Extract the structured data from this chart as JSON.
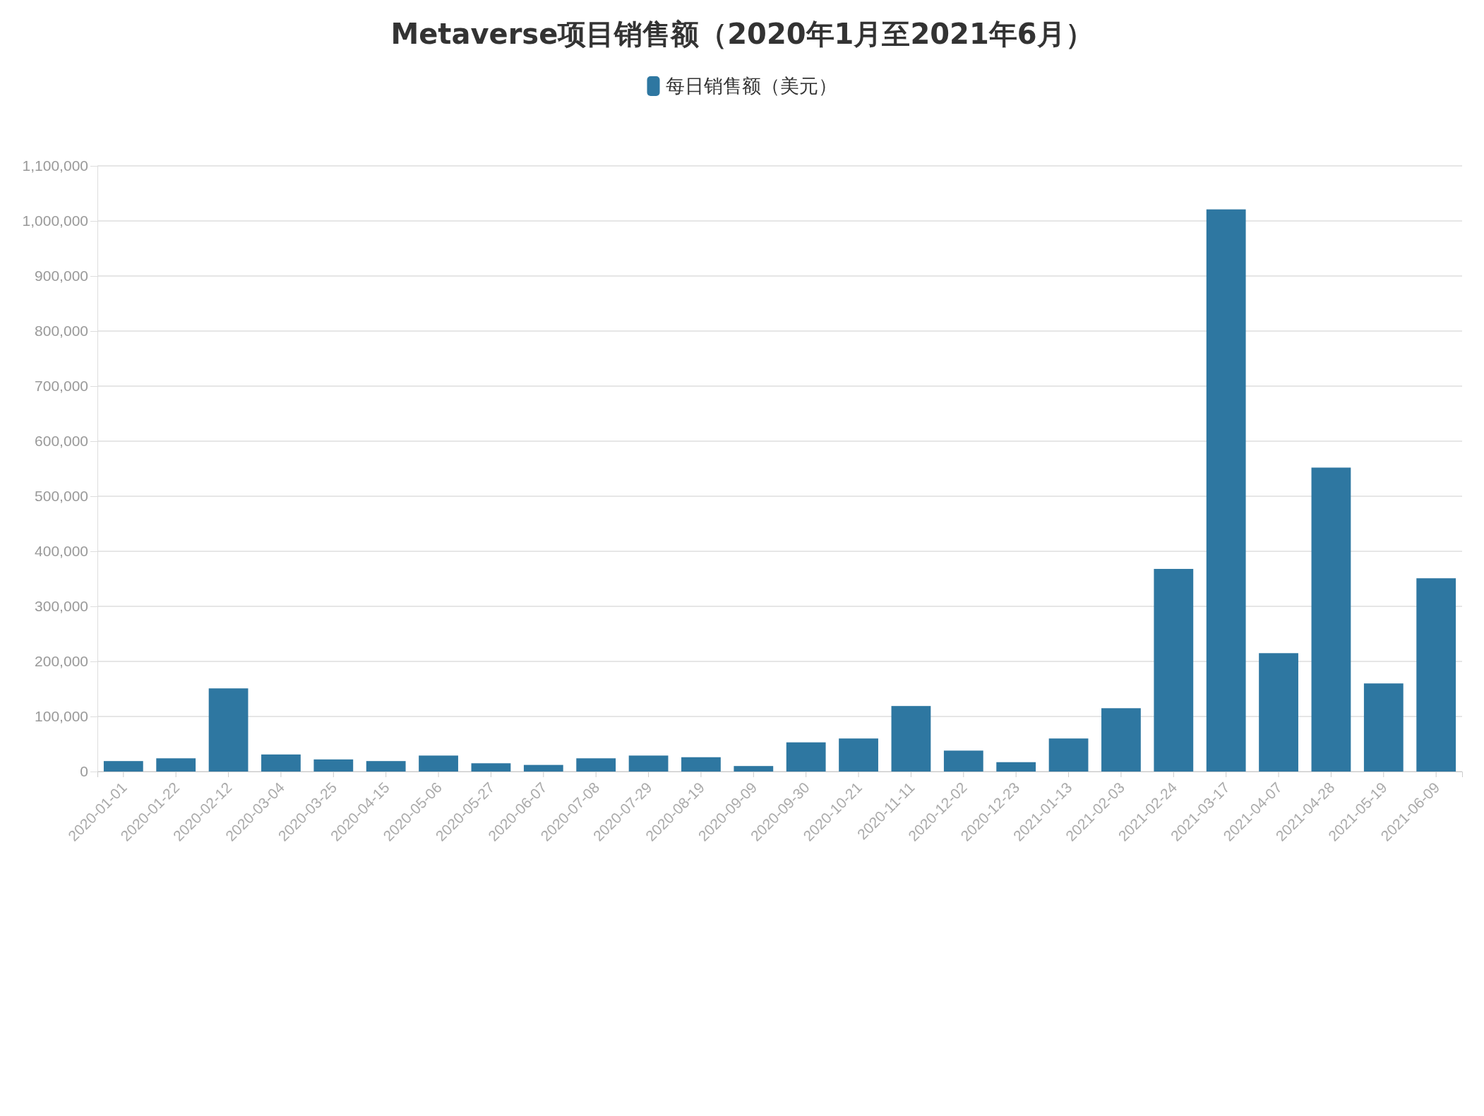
{
  "chart_data": {
    "type": "bar",
    "title": "Metaverse项目销售额（2020年1月至2021年6月）",
    "categories": [
      "2020-01-01",
      "2020-01-22",
      "2020-02-12",
      "2020-03-04",
      "2020-03-25",
      "2020-04-15",
      "2020-05-06",
      "2020-05-27",
      "2020-06-07",
      "2020-07-08",
      "2020-07-29",
      "2020-08-19",
      "2020-09-09",
      "2020-09-30",
      "2020-10-21",
      "2020-11-11",
      "2020-12-02",
      "2020-12-23",
      "2021-01-13",
      "2021-02-03",
      "2021-02-24",
      "2021-03-17",
      "2021-04-07",
      "2021-04-28",
      "2021-05-19",
      "2021-06-09"
    ],
    "series": [
      {
        "name": "每日销售额（美元）",
        "color": "#2e77a1",
        "values": [
          19000,
          24000,
          151000,
          31000,
          22000,
          19000,
          29000,
          15000,
          12000,
          24000,
          29000,
          26000,
          10000,
          53000,
          60000,
          119000,
          38000,
          17000,
          60000,
          115000,
          368000,
          1021000,
          215000,
          552000,
          160000,
          351000
        ]
      }
    ],
    "ylim": [
      0,
      1100000
    ],
    "yticks": [
      {
        "value": 0,
        "label": "0"
      },
      {
        "value": 100000,
        "label": "100,000"
      },
      {
        "value": 200000,
        "label": "200,000"
      },
      {
        "value": 300000,
        "label": "300,000"
      },
      {
        "value": 400000,
        "label": "400,000"
      },
      {
        "value": 500000,
        "label": "500,000"
      },
      {
        "value": 600000,
        "label": "600,000"
      },
      {
        "value": 700000,
        "label": "700,000"
      },
      {
        "value": 800000,
        "label": "800,000"
      },
      {
        "value": 900000,
        "label": "900,000"
      },
      {
        "value": 1000000,
        "label": "1,000,000"
      },
      {
        "value": 1100000,
        "label": "1,100,000"
      }
    ],
    "grid": "y",
    "legend": "top"
  }
}
